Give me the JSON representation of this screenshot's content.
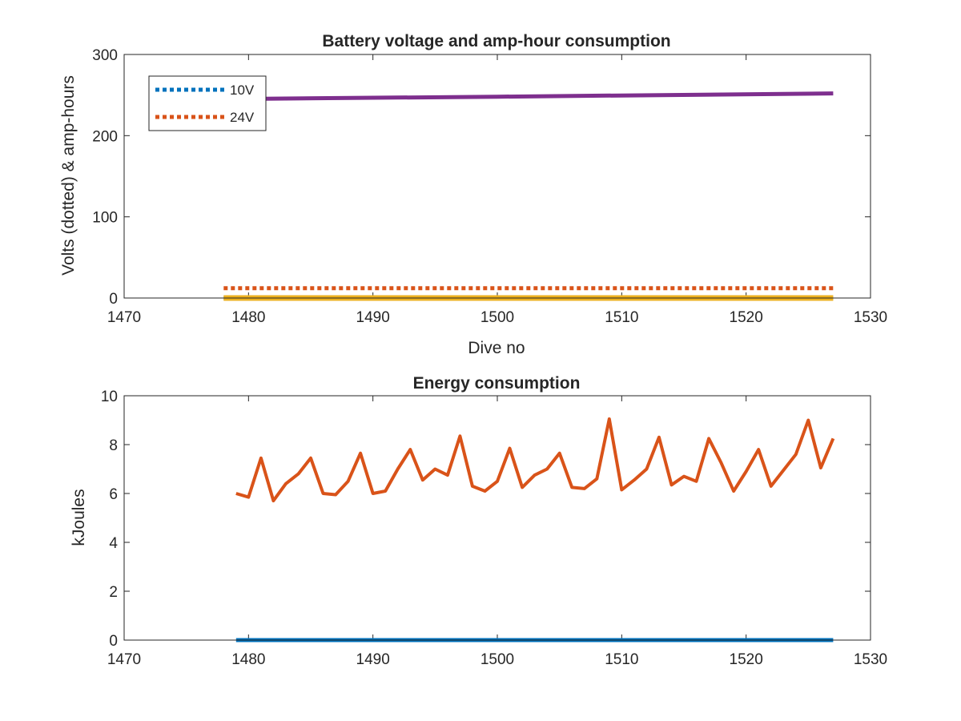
{
  "chart_data": [
    {
      "type": "line",
      "title": "Battery voltage and amp-hour consumption",
      "xlabel": "Dive no",
      "ylabel": "Volts (dotted) & amp-hours",
      "xlim": [
        1470,
        1530
      ],
      "ylim": [
        0,
        300
      ],
      "xticks": [
        1470,
        1480,
        1490,
        1500,
        1510,
        1520,
        1530
      ],
      "yticks": [
        0,
        100,
        200,
        300
      ],
      "grid": false,
      "legend_position": "top-left",
      "series": [
        {
          "name": "10V",
          "style": "dotted",
          "color": "#0072BD",
          "x": [
            1478,
            1527
          ],
          "y": [
            0,
            0
          ]
        },
        {
          "name": "24V",
          "style": "dotted",
          "color": "#D95319",
          "x": [
            1478,
            1527
          ],
          "y": [
            12,
            12
          ]
        },
        {
          "style": "solid",
          "color": "#EDB120",
          "x": [
            1478,
            1527
          ],
          "y": [
            0,
            0
          ]
        },
        {
          "style": "solid",
          "color": "#7E2F8E",
          "x": [
            1478,
            1500,
            1527
          ],
          "y": [
            245,
            248,
            252
          ]
        }
      ]
    },
    {
      "type": "line",
      "title": "Energy consumption",
      "xlabel": "",
      "ylabel": "kJoules",
      "xlim": [
        1470,
        1530
      ],
      "ylim": [
        0,
        10
      ],
      "xticks": [
        1470,
        1480,
        1490,
        1500,
        1510,
        1520,
        1530
      ],
      "yticks": [
        0,
        2,
        4,
        6,
        8,
        10
      ],
      "grid": false,
      "series": [
        {
          "style": "solid",
          "color": "#0072BD",
          "x": [
            1479,
            1527
          ],
          "y": [
            0,
            0
          ]
        },
        {
          "style": "solid",
          "color": "#D95319",
          "x": [
            1479,
            1480,
            1481,
            1482,
            1483,
            1484,
            1485,
            1486,
            1487,
            1488,
            1489,
            1490,
            1491,
            1492,
            1493,
            1494,
            1495,
            1496,
            1497,
            1498,
            1499,
            1500,
            1501,
            1502,
            1503,
            1504,
            1505,
            1506,
            1507,
            1508,
            1509,
            1510,
            1511,
            1512,
            1513,
            1514,
            1515,
            1516,
            1517,
            1518,
            1519,
            1520,
            1521,
            1522,
            1523,
            1524,
            1525,
            1526,
            1527
          ],
          "y": [
            6.0,
            5.85,
            7.45,
            5.7,
            6.4,
            6.8,
            7.45,
            6.0,
            5.95,
            6.5,
            7.65,
            6.0,
            6.1,
            7.0,
            7.8,
            6.55,
            7.0,
            6.75,
            8.35,
            6.3,
            6.1,
            6.5,
            7.85,
            6.25,
            6.75,
            7.0,
            7.65,
            6.25,
            6.2,
            6.6,
            9.05,
            6.15,
            6.55,
            7.0,
            8.3,
            6.35,
            6.7,
            6.5,
            8.25,
            7.25,
            6.1,
            6.9,
            7.8,
            6.3,
            6.95,
            7.6,
            9.0,
            7.05,
            8.25
          ]
        }
      ]
    }
  ]
}
